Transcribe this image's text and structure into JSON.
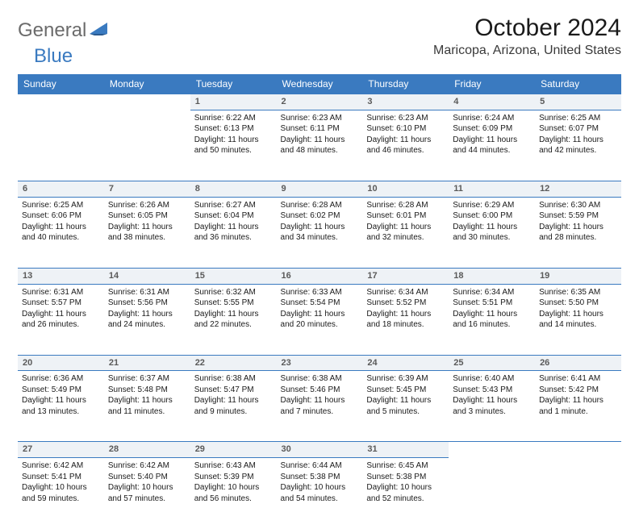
{
  "brand": {
    "part1": "General",
    "part2": "Blue"
  },
  "title": "October 2024",
  "location": "Maricopa, Arizona, United States",
  "colors": {
    "header_bg": "#3a7ac0",
    "header_fg": "#ffffff",
    "daynum_bg": "#eef2f6",
    "daynum_fg": "#5a5a5a",
    "border": "#3a7ac0",
    "text": "#1a1a1a",
    "page_bg": "#ffffff"
  },
  "typography": {
    "title_fontsize": 30,
    "location_fontsize": 16,
    "header_fontsize": 12,
    "cell_fontsize": 10,
    "daynum_fontsize": 11
  },
  "weekday_headers": [
    "Sunday",
    "Monday",
    "Tuesday",
    "Wednesday",
    "Thursday",
    "Friday",
    "Saturday"
  ],
  "first_weekday_index": 2,
  "days": [
    {
      "n": 1,
      "sunrise": "6:22 AM",
      "sunset": "6:13 PM",
      "daylight": "11 hours and 50 minutes."
    },
    {
      "n": 2,
      "sunrise": "6:23 AM",
      "sunset": "6:11 PM",
      "daylight": "11 hours and 48 minutes."
    },
    {
      "n": 3,
      "sunrise": "6:23 AM",
      "sunset": "6:10 PM",
      "daylight": "11 hours and 46 minutes."
    },
    {
      "n": 4,
      "sunrise": "6:24 AM",
      "sunset": "6:09 PM",
      "daylight": "11 hours and 44 minutes."
    },
    {
      "n": 5,
      "sunrise": "6:25 AM",
      "sunset": "6:07 PM",
      "daylight": "11 hours and 42 minutes."
    },
    {
      "n": 6,
      "sunrise": "6:25 AM",
      "sunset": "6:06 PM",
      "daylight": "11 hours and 40 minutes."
    },
    {
      "n": 7,
      "sunrise": "6:26 AM",
      "sunset": "6:05 PM",
      "daylight": "11 hours and 38 minutes."
    },
    {
      "n": 8,
      "sunrise": "6:27 AM",
      "sunset": "6:04 PM",
      "daylight": "11 hours and 36 minutes."
    },
    {
      "n": 9,
      "sunrise": "6:28 AM",
      "sunset": "6:02 PM",
      "daylight": "11 hours and 34 minutes."
    },
    {
      "n": 10,
      "sunrise": "6:28 AM",
      "sunset": "6:01 PM",
      "daylight": "11 hours and 32 minutes."
    },
    {
      "n": 11,
      "sunrise": "6:29 AM",
      "sunset": "6:00 PM",
      "daylight": "11 hours and 30 minutes."
    },
    {
      "n": 12,
      "sunrise": "6:30 AM",
      "sunset": "5:59 PM",
      "daylight": "11 hours and 28 minutes."
    },
    {
      "n": 13,
      "sunrise": "6:31 AM",
      "sunset": "5:57 PM",
      "daylight": "11 hours and 26 minutes."
    },
    {
      "n": 14,
      "sunrise": "6:31 AM",
      "sunset": "5:56 PM",
      "daylight": "11 hours and 24 minutes."
    },
    {
      "n": 15,
      "sunrise": "6:32 AM",
      "sunset": "5:55 PM",
      "daylight": "11 hours and 22 minutes."
    },
    {
      "n": 16,
      "sunrise": "6:33 AM",
      "sunset": "5:54 PM",
      "daylight": "11 hours and 20 minutes."
    },
    {
      "n": 17,
      "sunrise": "6:34 AM",
      "sunset": "5:52 PM",
      "daylight": "11 hours and 18 minutes."
    },
    {
      "n": 18,
      "sunrise": "6:34 AM",
      "sunset": "5:51 PM",
      "daylight": "11 hours and 16 minutes."
    },
    {
      "n": 19,
      "sunrise": "6:35 AM",
      "sunset": "5:50 PM",
      "daylight": "11 hours and 14 minutes."
    },
    {
      "n": 20,
      "sunrise": "6:36 AM",
      "sunset": "5:49 PM",
      "daylight": "11 hours and 13 minutes."
    },
    {
      "n": 21,
      "sunrise": "6:37 AM",
      "sunset": "5:48 PM",
      "daylight": "11 hours and 11 minutes."
    },
    {
      "n": 22,
      "sunrise": "6:38 AM",
      "sunset": "5:47 PM",
      "daylight": "11 hours and 9 minutes."
    },
    {
      "n": 23,
      "sunrise": "6:38 AM",
      "sunset": "5:46 PM",
      "daylight": "11 hours and 7 minutes."
    },
    {
      "n": 24,
      "sunrise": "6:39 AM",
      "sunset": "5:45 PM",
      "daylight": "11 hours and 5 minutes."
    },
    {
      "n": 25,
      "sunrise": "6:40 AM",
      "sunset": "5:43 PM",
      "daylight": "11 hours and 3 minutes."
    },
    {
      "n": 26,
      "sunrise": "6:41 AM",
      "sunset": "5:42 PM",
      "daylight": "11 hours and 1 minute."
    },
    {
      "n": 27,
      "sunrise": "6:42 AM",
      "sunset": "5:41 PM",
      "daylight": "10 hours and 59 minutes."
    },
    {
      "n": 28,
      "sunrise": "6:42 AM",
      "sunset": "5:40 PM",
      "daylight": "10 hours and 57 minutes."
    },
    {
      "n": 29,
      "sunrise": "6:43 AM",
      "sunset": "5:39 PM",
      "daylight": "10 hours and 56 minutes."
    },
    {
      "n": 30,
      "sunrise": "6:44 AM",
      "sunset": "5:38 PM",
      "daylight": "10 hours and 54 minutes."
    },
    {
      "n": 31,
      "sunrise": "6:45 AM",
      "sunset": "5:38 PM",
      "daylight": "10 hours and 52 minutes."
    }
  ],
  "labels": {
    "sunrise": "Sunrise:",
    "sunset": "Sunset:",
    "daylight": "Daylight:"
  }
}
